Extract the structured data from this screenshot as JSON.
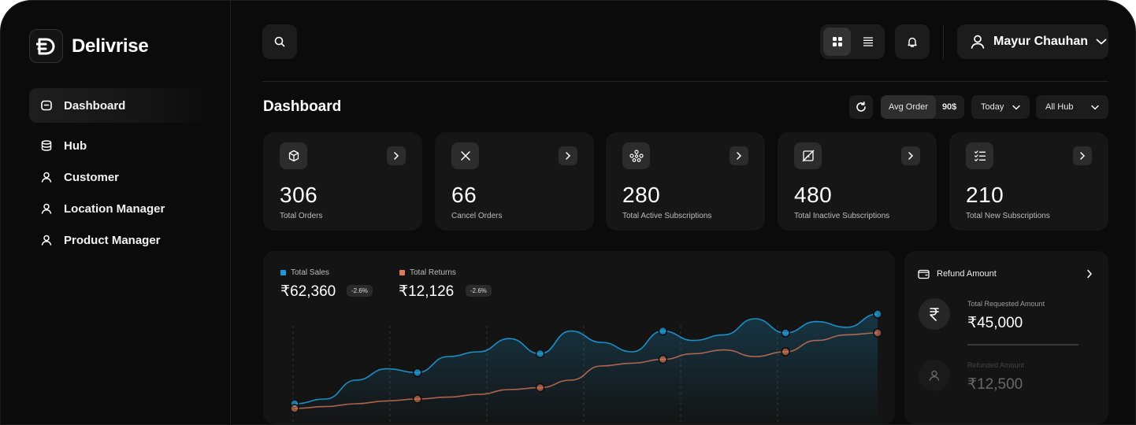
{
  "app": {
    "name": "Delivrise"
  },
  "sidebar": {
    "items": [
      {
        "label": "Dashboard",
        "icon": "dashboard-icon",
        "active": true
      },
      {
        "label": "Hub",
        "icon": "database-icon"
      },
      {
        "label": "Customer",
        "icon": "user-icon"
      },
      {
        "label": "Location Manager",
        "icon": "user-icon"
      },
      {
        "label": "Product Manager",
        "icon": "user-icon"
      }
    ]
  },
  "header": {
    "user_name": "Mayur Chauhan",
    "icons": [
      "search-icon",
      "grid-view-icon",
      "list-view-icon",
      "bell-icon",
      "user-icon",
      "chevron-down-icon"
    ]
  },
  "page": {
    "title": "Dashboard",
    "avg_order_label": "Avg Order",
    "avg_order_value": "90$",
    "period": "Today",
    "hub": "All Hub"
  },
  "stats": [
    {
      "value": "306",
      "label": "Total Orders",
      "icon": "box-icon"
    },
    {
      "value": "66",
      "label": "Cancel Orders",
      "icon": "close-icon"
    },
    {
      "value": "280",
      "label": "Total Active Subscriptions",
      "icon": "network-icon"
    },
    {
      "value": "480",
      "label": "Total Inactive Subscriptions",
      "icon": "crossed-image-icon"
    },
    {
      "value": "210",
      "label": "Total New Subscriptions",
      "icon": "checklist-icon"
    }
  ],
  "sales": {
    "total_sales_label": "Total Sales",
    "total_sales_value": "₹62,360",
    "total_sales_change": "-2.6%",
    "total_returns_label": "Total Returns",
    "total_returns_value": "₹12,126",
    "total_returns_change": "-2.6%",
    "colors": {
      "sales": "#1e9bd7",
      "returns": "#e07b5a"
    }
  },
  "refund": {
    "title": "Refund Amount",
    "requested_label": "Total Requested Amount",
    "requested_value": "₹45,000",
    "refunded_label": "Refunded Amount",
    "refunded_value": "₹12,500"
  },
  "chart_data": {
    "type": "line",
    "series": [
      {
        "name": "Total Sales",
        "values": [
          0.05,
          0.1,
          0.3,
          0.42,
          0.38,
          0.55,
          0.6,
          0.74,
          0.58,
          0.82,
          0.7,
          0.6,
          0.82,
          0.72,
          0.78,
          0.95,
          0.8,
          0.92,
          0.86,
          1.0
        ]
      },
      {
        "name": "Total Returns",
        "values": [
          0.0,
          0.02,
          0.05,
          0.08,
          0.1,
          0.12,
          0.15,
          0.2,
          0.22,
          0.3,
          0.45,
          0.48,
          0.52,
          0.58,
          0.62,
          0.55,
          0.6,
          0.72,
          0.78,
          0.8
        ]
      }
    ]
  }
}
